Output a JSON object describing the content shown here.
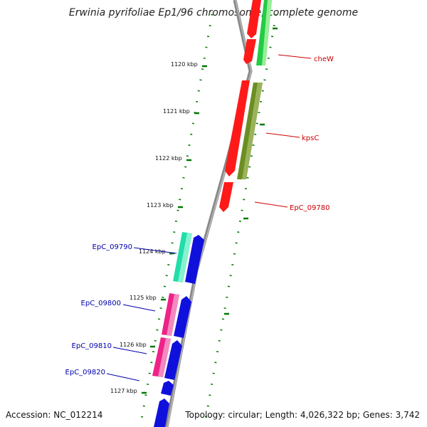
{
  "title": "Erwinia pyrifoliae Ep1/96 chromosome, complete genome",
  "footer": {
    "accession": "Accession: NC_012214",
    "topology": "Topology: circular; Length: 4,026,322 bp; Genes: 3,742"
  },
  "ticks": [
    "1120 kbp",
    "1121 kbp",
    "1122 kbp",
    "1123 kbp",
    "1124 kbp",
    "1125 kbp",
    "1126 kbp",
    "1127 kbp"
  ],
  "gene_labels": [
    {
      "text": "cheW",
      "strand": "forward"
    },
    {
      "text": "kpsC",
      "strand": "forward"
    },
    {
      "text": "EpC_09780",
      "strand": "forward"
    },
    {
      "text": "EpC_09790",
      "strand": "reverse"
    },
    {
      "text": "EpC_09800",
      "strand": "reverse"
    },
    {
      "text": "EpC_09810",
      "strand": "reverse"
    },
    {
      "text": "EpC_09820",
      "strand": "reverse"
    }
  ],
  "colors": {
    "forward_cds": "#ff1a1a",
    "reverse_cds": "#1010dd",
    "forward_label": "#cc0000",
    "reverse_label": "#0000aa",
    "rna_green": "#22cc44",
    "kpsC_track": "#6b8e23",
    "teal_track": "#22ddaa",
    "pink_track": "#ee2288",
    "tick_green": "#007700",
    "backbone": "#888888"
  }
}
